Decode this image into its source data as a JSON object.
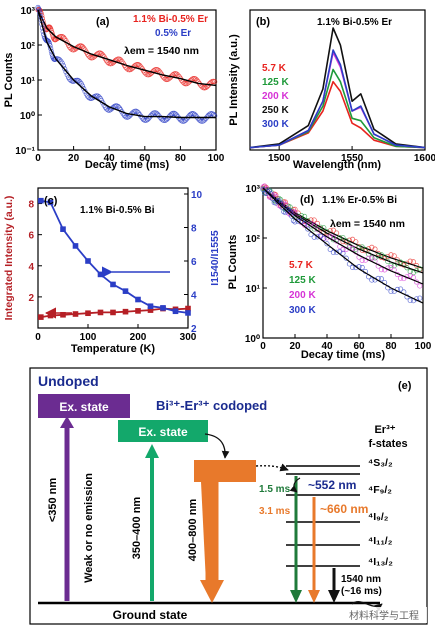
{
  "chart_data": [
    {
      "panel": "(a)",
      "type": "scatter",
      "title": "",
      "xlabel": "Decay time (ms)",
      "ylabel": "PL Counts",
      "xlim": [
        0,
        100
      ],
      "ylim_log10": [
        -1,
        3
      ],
      "xticks": [
        0,
        20,
        40,
        60,
        80,
        100
      ],
      "y_tick_labels": [
        "10⁻¹",
        "10⁰",
        "10¹",
        "10²",
        "10³"
      ],
      "annotation": "λem = 1540 nm",
      "series": [
        {
          "name": "1.1% Bi-0.5% Er",
          "color": "#e8231f",
          "x": [
            0,
            5,
            10,
            20,
            30,
            40,
            50,
            60,
            70,
            80,
            90,
            100
          ],
          "y": [
            1000,
            300,
            170,
            90,
            55,
            38,
            26,
            19,
            14,
            11,
            8,
            7
          ]
        },
        {
          "name": "0.5% Er",
          "color": "#2b3ec6",
          "x": [
            0,
            5,
            10,
            20,
            30,
            40,
            50,
            60,
            70,
            80,
            90,
            100
          ],
          "y": [
            1000,
            120,
            40,
            10,
            3.5,
            1.7,
            1.1,
            0.9,
            0.9,
            0.85,
            0.85,
            0.85
          ]
        }
      ]
    },
    {
      "panel": "(b)",
      "type": "line",
      "title": "1.1% Bi-0.5% Er",
      "xlabel": "Wavelength (nm)",
      "ylabel": "PL Intensity (a.u.)",
      "xlim": [
        1480,
        1600
      ],
      "xticks": [
        1500,
        1550,
        1600
      ],
      "series": [
        {
          "name": "5.7 K",
          "color": "#e8231f",
          "x": [
            1480,
            1500,
            1520,
            1530,
            1537,
            1542,
            1550,
            1556,
            1565,
            1580,
            1600
          ],
          "y": [
            0.02,
            0.04,
            0.14,
            0.32,
            0.56,
            0.48,
            0.22,
            0.18,
            0.08,
            0.03,
            0.02
          ]
        },
        {
          "name": "125 K",
          "color": "#1f9a3a",
          "x": [
            1480,
            1500,
            1520,
            1530,
            1537,
            1542,
            1550,
            1556,
            1565,
            1580,
            1600
          ],
          "y": [
            0.02,
            0.04,
            0.15,
            0.36,
            0.66,
            0.56,
            0.26,
            0.24,
            0.1,
            0.03,
            0.02
          ]
        },
        {
          "name": "200 K",
          "color": "#d633d6",
          "x": [
            1480,
            1500,
            1520,
            1530,
            1537,
            1542,
            1550,
            1556,
            1565,
            1580,
            1600
          ],
          "y": [
            0.02,
            0.04,
            0.16,
            0.4,
            0.8,
            0.68,
            0.32,
            0.35,
            0.13,
            0.04,
            0.02
          ]
        },
        {
          "name": "250 K",
          "color": "#111111",
          "x": [
            1480,
            1500,
            1520,
            1530,
            1537,
            1542,
            1550,
            1556,
            1565,
            1580,
            1600
          ],
          "y": [
            0.02,
            0.05,
            0.2,
            0.5,
            1.0,
            0.86,
            0.4,
            0.46,
            0.17,
            0.05,
            0.02
          ]
        },
        {
          "name": "300 K",
          "color": "#2b3ec6",
          "x": [
            1480,
            1500,
            1520,
            1530,
            1537,
            1542,
            1550,
            1556,
            1565,
            1580,
            1600
          ],
          "y": [
            0.02,
            0.04,
            0.16,
            0.4,
            0.82,
            0.7,
            0.32,
            0.36,
            0.13,
            0.04,
            0.02
          ]
        }
      ]
    },
    {
      "panel": "(c)",
      "type": "line",
      "title": "1.1% Bi-0.5% Bi",
      "xlabel": "Temperature (K)",
      "ylabel": "Integrated Intensity (a.u.)",
      "ylabel_right": "I1540/I1555",
      "xlim": [
        0,
        300
      ],
      "ylim": [
        0,
        9
      ],
      "ylim_right": [
        2,
        10
      ],
      "xticks": [
        0,
        100,
        200,
        300
      ],
      "yticks": [
        2,
        4,
        6,
        8
      ],
      "yticks_right": [
        2,
        4,
        6,
        8,
        10
      ],
      "series": [
        {
          "name": "Integrated Intensity",
          "color": "#b51f25",
          "axis": "left",
          "x": [
            5.7,
            25,
            50,
            75,
            100,
            125,
            150,
            175,
            200,
            225,
            250,
            275,
            300
          ],
          "y": [
            0.7,
            0.8,
            0.85,
            0.9,
            0.95,
            1.0,
            1.0,
            1.05,
            1.1,
            1.15,
            1.25,
            1.2,
            1.25
          ]
        },
        {
          "name": "I1540/I1555",
          "color": "#2b3ec6",
          "axis": "right",
          "x": [
            5.7,
            25,
            50,
            75,
            100,
            125,
            150,
            175,
            200,
            225,
            250,
            275,
            300
          ],
          "y": [
            9.6,
            9.5,
            7.9,
            6.9,
            6.0,
            5.2,
            4.6,
            4.2,
            3.7,
            3.3,
            3.2,
            3.0,
            2.9
          ]
        }
      ]
    },
    {
      "panel": "(d)",
      "type": "scatter",
      "title": "1.1% Er-0.5% Bi",
      "xlabel": "Decay time (ms)",
      "ylabel": "PL Counts",
      "xlim": [
        0,
        100
      ],
      "ylim_log10": [
        0,
        3
      ],
      "xticks": [
        0,
        20,
        40,
        60,
        80,
        100
      ],
      "y_tick_labels": [
        "10⁰",
        "10¹",
        "10²",
        "10³"
      ],
      "annotation": "λem = 1540 nm",
      "series": [
        {
          "name": "5.7 K",
          "color": "#e8231f",
          "x": [
            0,
            10,
            20,
            40,
            60,
            80,
            100
          ],
          "y": [
            1000,
            560,
            320,
            140,
            70,
            40,
            25
          ]
        },
        {
          "name": "125 K",
          "color": "#1f9a3a",
          "x": [
            0,
            10,
            20,
            40,
            60,
            80,
            100
          ],
          "y": [
            1000,
            540,
            300,
            125,
            60,
            33,
            20
          ]
        },
        {
          "name": "200 K",
          "color": "#d633d6",
          "x": [
            0,
            10,
            20,
            40,
            60,
            80,
            100
          ],
          "y": [
            1000,
            520,
            280,
            105,
            45,
            22,
            12
          ]
        },
        {
          "name": "300 K",
          "color": "#2b3ec6",
          "x": [
            0,
            10,
            20,
            40,
            60,
            80,
            100
          ],
          "y": [
            1000,
            480,
            240,
            75,
            24,
            10,
            5
          ]
        }
      ]
    }
  ],
  "diagram": {
    "panel": "(e)",
    "undoped_label": "Undoped",
    "codoped_label": "Bi³⁺-Er³⁺ codoped",
    "ex_state_left": "Ex. state",
    "ex_state_right": "Ex. state",
    "ground_state": "Ground state",
    "arrow_lt350": "<350 nm",
    "weak_emission": "Weak or no emission",
    "arrow_350_400": "350–400 nm",
    "arrow_400_800": "400–800 nm",
    "er_title_1": "Er³⁺",
    "er_title_2": "f-states",
    "levels": [
      "⁴S₃/₂",
      "⁴F₉/₂",
      "⁴I₉/₂",
      "⁴I₁₁/₂",
      "⁴I₁₃/₂"
    ],
    "t_1_5": "1.5 ms",
    "t_3_1": "3.1 ms",
    "nm552": "~552 nm",
    "nm660": "~660 nm",
    "nm1540": "1540 nm",
    "ms16": "(~16 ms)",
    "watermark": "材料科学与工程",
    "colors": {
      "purple": "#6b2c91",
      "green": "#13a86b",
      "orange": "#e8792b",
      "darkgreen": "#1f7a3a",
      "navy": "#1a2b8f"
    }
  }
}
